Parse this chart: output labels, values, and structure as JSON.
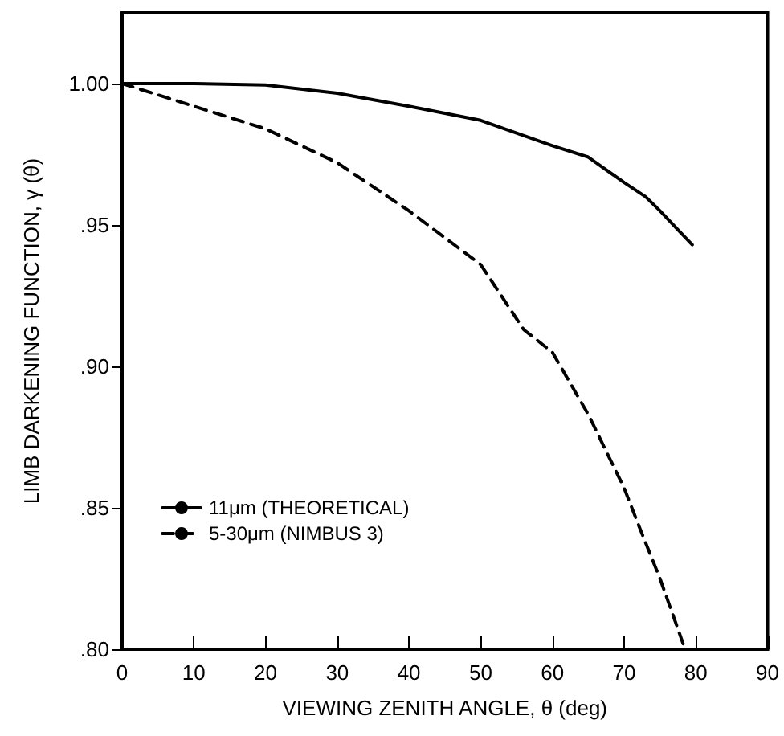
{
  "chart_data": {
    "type": "line",
    "xlabel": "VIEWING ZENITH ANGLE, θ (deg)",
    "ylabel": "LIMB DARKENING FUNCTION, γ (θ)",
    "xlim": [
      0,
      90
    ],
    "xticks": [
      0,
      10,
      20,
      30,
      40,
      50,
      60,
      70,
      80,
      90
    ],
    "ylim": [
      0.8,
      1.025
    ],
    "yticks": [
      {
        "value": 0.8,
        "label": ".80"
      },
      {
        "value": 0.85,
        "label": ".85"
      },
      {
        "value": 0.9,
        "label": ".90"
      },
      {
        "value": 0.95,
        "label": ".95"
      },
      {
        "value": 1.0,
        "label": "1.00"
      }
    ],
    "grid": false,
    "legend": "bottom left",
    "marker": "none",
    "series": [
      {
        "name": "11μm (THEORETICAL)",
        "color": "#000000",
        "line_style": "solid",
        "x": [
          0,
          10,
          20,
          30,
          40,
          50,
          60,
          65,
          70,
          73,
          75,
          78,
          79.5
        ],
        "values": [
          1.0,
          1.0,
          0.9995,
          0.9966,
          0.992,
          0.987,
          0.978,
          0.974,
          0.965,
          0.96,
          0.955,
          0.947,
          0.943
        ]
      },
      {
        "name": "5-30μm (NIMBUS 3)",
        "color": "#000000",
        "line_style": "dashed",
        "x": [
          0,
          10,
          20,
          30,
          40,
          50,
          56,
          60,
          65,
          70,
          72,
          75,
          78.5
        ],
        "values": [
          1.0,
          0.992,
          0.984,
          0.972,
          0.955,
          0.936,
          0.913,
          0.905,
          0.883,
          0.857,
          0.844,
          0.825,
          0.8
        ]
      }
    ]
  }
}
